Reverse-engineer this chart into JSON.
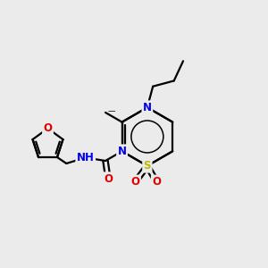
{
  "background_color": "#ebebeb",
  "bond_color": "#000000",
  "bond_width": 1.6,
  "atom_colors": {
    "N": "#0000ee",
    "O": "#dd0000",
    "S": "#bbbb00",
    "C": "#000000"
  },
  "font_size_atom": 8.5,
  "font_size_small": 7.5
}
